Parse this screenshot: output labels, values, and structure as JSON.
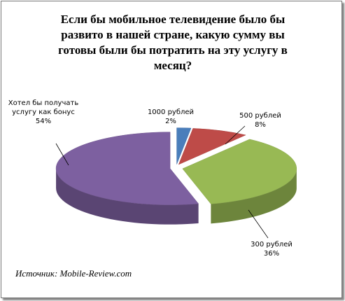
{
  "chart_data": {
    "type": "pie3d",
    "title": "Если бы мобильное телевидение было бы развито в нашей стране, какую сумму вы готовы были бы потратить на эту услугу в месяц?",
    "categories": [
      "1000 рублей",
      "500 рублей",
      "300 рублей",
      "Хотел бы получать услугу как бонус"
    ],
    "values": [
      2,
      8,
      36,
      54
    ],
    "value_labels": [
      "2%",
      "8%",
      "36%",
      "54%"
    ],
    "colors": [
      "#4a7ebb",
      "#be4b48",
      "#98b954",
      "#7d60a0"
    ],
    "source": "Источник: Mobile-Review.com"
  }
}
